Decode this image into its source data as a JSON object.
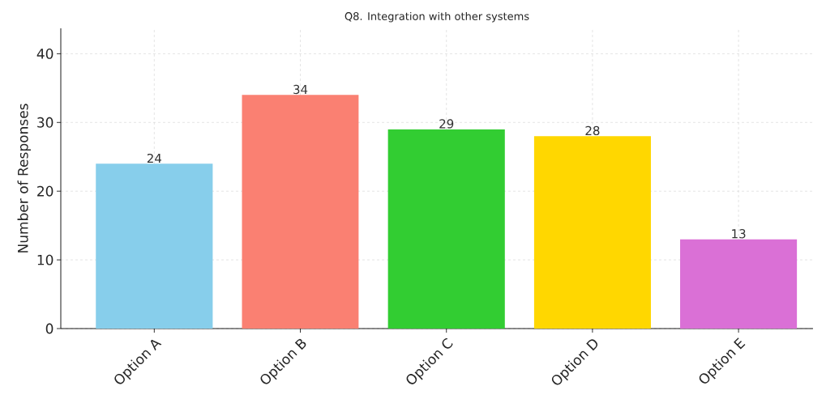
{
  "chart_data": {
    "type": "bar",
    "title": "Q8. Integration with other systems",
    "ylabel": "Number of Responses",
    "categories": [
      "Option A",
      "Option B",
      "Option C",
      "Option D",
      "Option E"
    ],
    "values": [
      24,
      34,
      29,
      28,
      13
    ],
    "colors": [
      "#87ceeb",
      "#fa8072",
      "#32cd32",
      "#ffd700",
      "#da70d6"
    ],
    "ylim": [
      0,
      43.7
    ],
    "yticks": [
      0,
      10,
      20,
      30,
      40
    ],
    "grid": true,
    "data_labels": true
  }
}
